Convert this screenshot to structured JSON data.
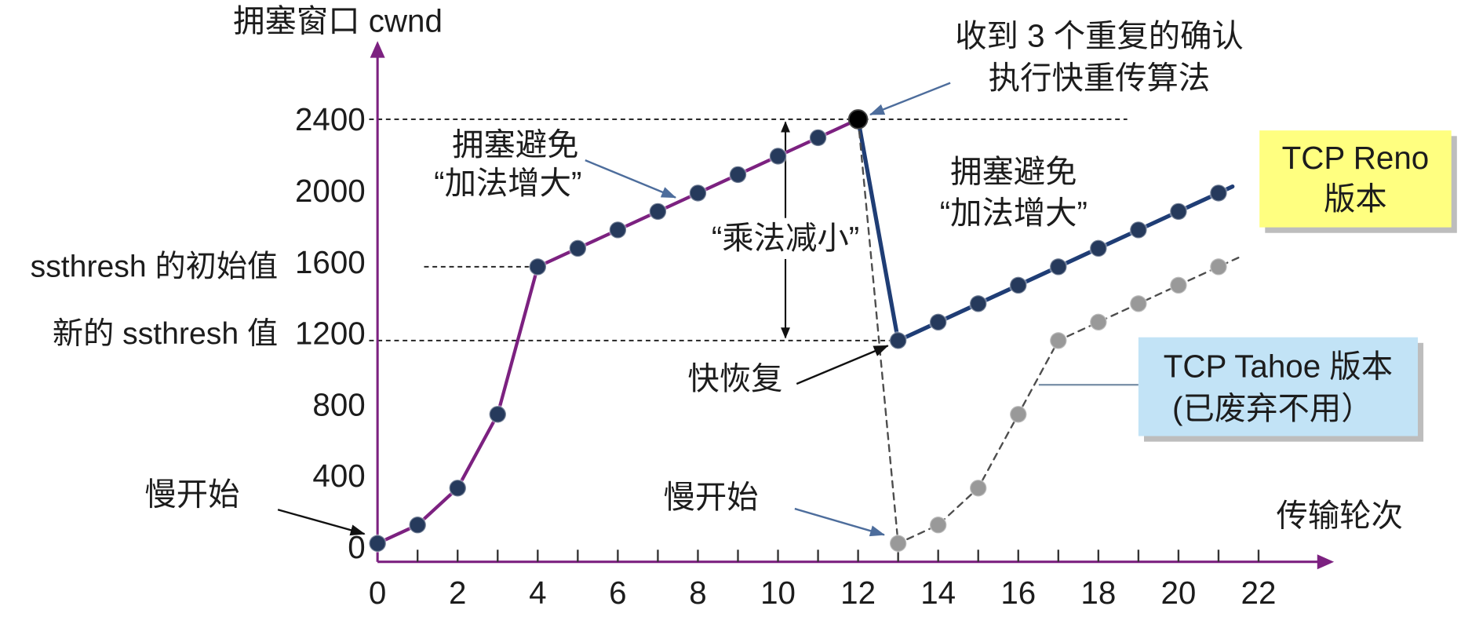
{
  "chart_data": {
    "type": "line",
    "title": "",
    "ylabel": "拥塞窗口 cwnd",
    "xlabel": "传输轮次",
    "xlim": [
      0,
      22
    ],
    "ylim": [
      0,
      2400
    ],
    "x_ticks": [
      0,
      2,
      4,
      6,
      8,
      10,
      12,
      14,
      16,
      18,
      20,
      22
    ],
    "y_ticks": [
      0,
      400,
      800,
      1200,
      1600,
      2000,
      2400
    ],
    "grid": false,
    "axis_color": "#7c2180",
    "series": [
      {
        "color": "#7c2180",
        "marker_color": "#263a5c",
        "dashed": false,
        "x": [
          0,
          1,
          2,
          3,
          4,
          5,
          6,
          7,
          8,
          9,
          10,
          11,
          12
        ],
        "y": [
          100,
          200,
          400,
          800,
          1600,
          1700,
          1800,
          1900,
          2000,
          2100,
          2200,
          2300,
          2400
        ]
      },
      {
        "color": "#1f3d75",
        "marker_color": "#263a5c",
        "dashed": false,
        "x": [
          12,
          13,
          14,
          15,
          16,
          17,
          18,
          19,
          20,
          21
        ],
        "y": [
          2400,
          1200,
          1300,
          1400,
          1500,
          1600,
          1700,
          1800,
          1900,
          2000
        ]
      },
      {
        "color": "#4d4d4d",
        "marker_color": "#999999",
        "dashed": true,
        "x": [
          12,
          13,
          14,
          15,
          16,
          17,
          18,
          19,
          20,
          21
        ],
        "y": [
          2400,
          100,
          200,
          400,
          800,
          1200,
          1300,
          1400,
          1500,
          1600
        ]
      }
    ],
    "reference_lines": [
      2400,
      1600,
      1200
    ],
    "highlight_point": {
      "x": 12,
      "y": 2400,
      "color": "#000000"
    },
    "decrease": {
      "from": 2400,
      "to": 1200
    },
    "annotations": {
      "slow_start_first": "慢开始",
      "congestion_avoidance_first": [
        "拥塞避免",
        "“加法增大”"
      ],
      "triple_dup_ack": [
        "收到 3 个重复的确认",
        "执行快重传算法"
      ],
      "multiplicative_decrease": "“乘法减小”",
      "congestion_avoidance_second": [
        "拥塞避免",
        "“加法增大”"
      ],
      "fast_recovery": "快恢复",
      "slow_start_second": "慢开始",
      "ssthresh_initial": "ssthresh 的初始值",
      "ssthresh_new": "新的 ssthresh 值",
      "reno_box": {
        "lines": [
          "TCP Reno",
          "版本"
        ],
        "color": "#ffff80"
      },
      "tahoe_box": {
        "lines": [
          "TCP Tahoe 版本",
          "(已废弃不用）"
        ],
        "color": "#c2e3f6"
      }
    }
  }
}
